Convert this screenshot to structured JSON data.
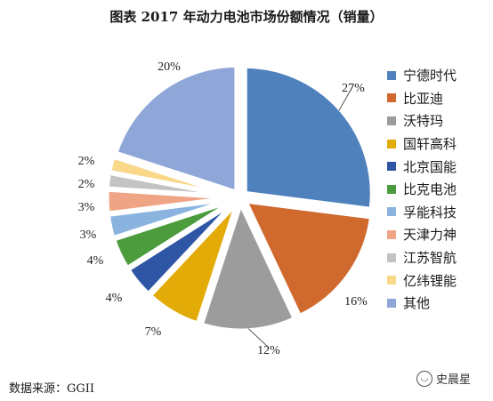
{
  "chart_data": {
    "type": "pie",
    "title": "图表  2017 年动力电池市场份额情况（销量）",
    "categories": [
      "宁德时代",
      "比亚迪",
      "沃特玛",
      "国轩高科",
      "北京国能",
      "比克电池",
      "孚能科技",
      "天津力神",
      "江苏智航",
      "亿纬锂能",
      "其他"
    ],
    "values": [
      27,
      16,
      12,
      7,
      4,
      4,
      3,
      3,
      2,
      2,
      20
    ],
    "labels": [
      "27%",
      "16%",
      "12%",
      "7%",
      "4%",
      "4%",
      "3%",
      "3%",
      "2%",
      "2%",
      "20%"
    ],
    "colors": [
      "#4f81bd",
      "#d0692e",
      "#9c9c9c",
      "#e3ab08",
      "#2e56a5",
      "#4c9b3c",
      "#8ab3e0",
      "#f0a486",
      "#c3c3c3",
      "#f9d88a",
      "#8fa6d8"
    ],
    "legend_position": "right"
  },
  "source": "数据来源：GGII",
  "watermark": {
    "text": "史晨星",
    "icon": "wechat-icon"
  }
}
